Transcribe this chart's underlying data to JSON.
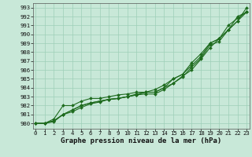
{
  "title": "Graphe pression niveau de la mer (hPa)",
  "x": [
    0,
    1,
    2,
    3,
    4,
    5,
    6,
    7,
    8,
    9,
    10,
    11,
    12,
    13,
    14,
    15,
    16,
    17,
    18,
    19,
    20,
    21,
    22,
    23
  ],
  "line1": [
    980.0,
    980.0,
    980.3,
    981.0,
    981.5,
    982.0,
    982.3,
    982.5,
    982.7,
    982.8,
    983.0,
    983.3,
    983.5,
    983.8,
    984.3,
    985.0,
    985.5,
    986.5,
    987.5,
    989.0,
    989.5,
    990.5,
    991.5,
    992.5
  ],
  "line2": [
    980.0,
    980.0,
    980.3,
    981.0,
    981.5,
    982.0,
    982.3,
    982.5,
    982.7,
    982.8,
    983.0,
    983.2,
    983.5,
    983.5,
    984.0,
    985.0,
    985.5,
    986.8,
    987.8,
    989.0,
    989.5,
    991.0,
    991.8,
    992.5
  ],
  "line3": [
    980.0,
    980.0,
    980.5,
    982.0,
    982.0,
    982.5,
    982.8,
    982.8,
    983.0,
    983.2,
    983.3,
    983.5,
    983.5,
    983.5,
    984.0,
    984.5,
    985.3,
    986.0,
    987.2,
    988.5,
    989.5,
    990.5,
    992.0,
    992.5
  ],
  "line4": [
    980.0,
    980.0,
    980.2,
    981.0,
    981.3,
    981.8,
    982.2,
    982.4,
    982.7,
    982.8,
    983.0,
    983.2,
    983.3,
    983.3,
    983.8,
    984.5,
    985.2,
    986.3,
    987.3,
    988.8,
    989.2,
    990.5,
    991.5,
    993.0
  ],
  "ylim": [
    979.4,
    993.5
  ],
  "xlim": [
    -0.3,
    23.3
  ],
  "yticks": [
    980,
    981,
    982,
    983,
    984,
    985,
    986,
    987,
    988,
    989,
    990,
    991,
    992,
    993
  ],
  "xticks": [
    0,
    1,
    2,
    3,
    4,
    5,
    6,
    7,
    8,
    9,
    10,
    11,
    12,
    13,
    14,
    15,
    16,
    17,
    18,
    19,
    20,
    21,
    22,
    23
  ],
  "line_color": "#1e6b1e",
  "bg_color": "#c8e8d8",
  "grid_color": "#9ecfb8",
  "marker": "D",
  "marker_size": 2.0,
  "line_width": 0.8,
  "title_fontsize": 6.5,
  "tick_fontsize": 5.2,
  "title_fontfamily": "monospace"
}
